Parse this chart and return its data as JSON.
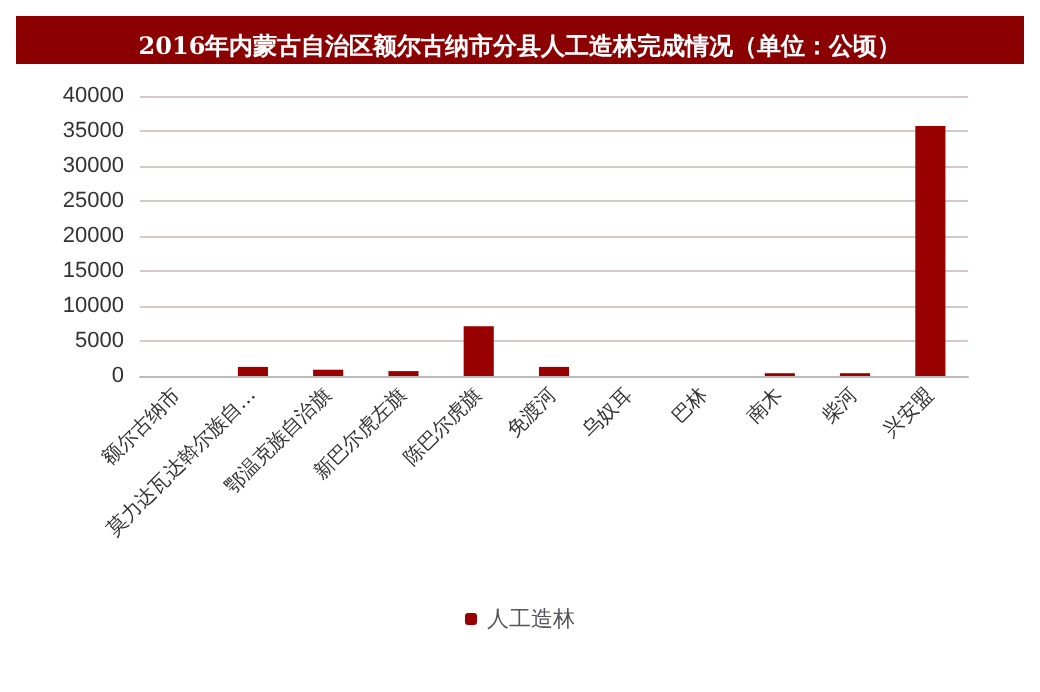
{
  "chart_data": {
    "type": "bar",
    "title": "2016年内蒙古自治区额尔古纳市分县人工造林完成情况（单位：公顷）",
    "categories": [
      "额尔古纳市",
      "莫力达瓦达斡尔族自…",
      "鄂温克族自治旗",
      "新巴尔虎左旗",
      "陈巴尔虎旗",
      "免渡河",
      "乌奴耳",
      "巴林",
      "南木",
      "柴河",
      "兴安盟"
    ],
    "series": [
      {
        "name": "人工造林",
        "color": "#990000",
        "values": [
          0,
          1300,
          900,
          700,
          7100,
          1300,
          0,
          0,
          400,
          400,
          35700
        ]
      }
    ],
    "ylim": [
      0,
      40000
    ],
    "yticks": [
      0,
      5000,
      10000,
      15000,
      20000,
      25000,
      30000,
      35000,
      40000
    ],
    "grid": "y",
    "legend": "bottom"
  }
}
